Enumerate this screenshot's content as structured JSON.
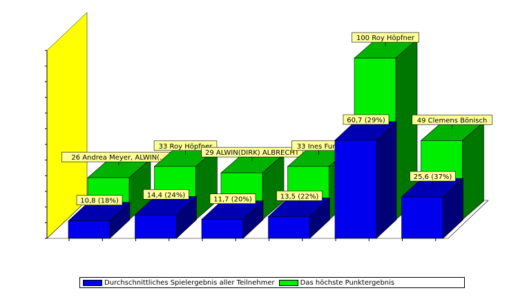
{
  "chart_data": {
    "type": "bar",
    "style": "3d-clustered",
    "categories": [
      "",
      "",
      "",
      "",
      "",
      ""
    ],
    "series": [
      {
        "name": "Durchschnittliches Spielergebnis aller Teilnehmer",
        "color": "#0000ee",
        "values": [
          10.8,
          14.4,
          11.7,
          13.5,
          60.7,
          25.6
        ],
        "labels": [
          "10,8 (18%)",
          "14,4 (24%)",
          "11,7 (20%)",
          "13,5 (22%)",
          "60,7 (29%)",
          "25,6 (37%)"
        ]
      },
      {
        "name": "Das höchste Punktergebnis",
        "color": "#00ee00",
        "values": [
          26,
          33,
          29,
          33,
          100,
          49
        ],
        "labels": [
          "26 Andrea Meyer, ALWIN(...",
          "33 Roy Höpfner",
          "29 ALWIN(DIRK) ALBRECHT",
          "33 Ines Funk",
          "100 Roy Höpfner",
          "49 Clemens Bönisch"
        ]
      }
    ],
    "ylim": [
      0,
      100
    ],
    "wall_color": "#ffff00",
    "legend_position": "bottom"
  },
  "legend": {
    "items": [
      {
        "label": "Durchschnittliches Spielergebnis aller Teilnehmer",
        "color": "#0000ee"
      },
      {
        "label": "Das höchste Punktergebnis",
        "color": "#00ee00"
      }
    ]
  }
}
